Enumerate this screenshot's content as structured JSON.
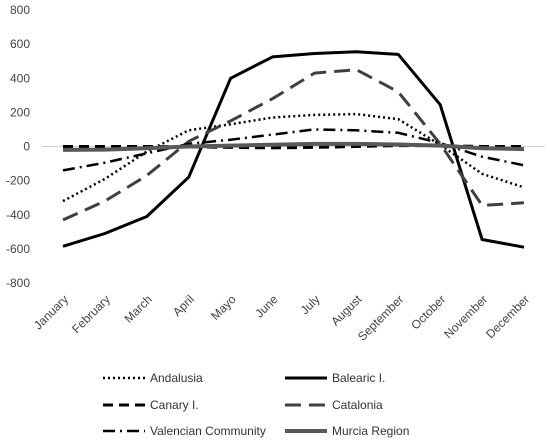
{
  "chart_data": {
    "type": "line",
    "title": "",
    "xlabel": "",
    "ylabel": "",
    "categories": [
      "January",
      "February",
      "March",
      "April",
      "Mayo",
      "June",
      "July",
      "August",
      "September",
      "October",
      "November",
      "December"
    ],
    "ylim": [
      -800,
      800
    ],
    "yticks": [
      800,
      600,
      400,
      200,
      0,
      -200,
      -400,
      -600,
      -800
    ],
    "grid": false,
    "legend_position": "bottom",
    "series": [
      {
        "name": "Andalusia",
        "style": "dotted",
        "width": 2.5,
        "color": "#000000",
        "values": [
          -320,
          -190,
          -30,
          95,
          130,
          170,
          185,
          190,
          160,
          10,
          -160,
          -240
        ]
      },
      {
        "name": "Balearic I.",
        "style": "solid",
        "width": 3,
        "color": "#000000",
        "values": [
          -585,
          -510,
          -410,
          -180,
          400,
          525,
          545,
          555,
          540,
          245,
          -545,
          -590
        ]
      },
      {
        "name": "Canary I.",
        "style": "dashed",
        "width": 3,
        "color": "#000000",
        "values": [
          0,
          0,
          0,
          -2,
          -5,
          -8,
          -5,
          0,
          5,
          5,
          0,
          0
        ]
      },
      {
        "name": "Catalonia",
        "style": "longdash",
        "width": 3,
        "color": "#404040",
        "values": [
          -430,
          -320,
          -170,
          30,
          150,
          280,
          430,
          450,
          320,
          15,
          -345,
          -330
        ]
      },
      {
        "name": "Valencian Community",
        "style": "dashdot",
        "width": 2.5,
        "color": "#000000",
        "values": [
          -140,
          -95,
          -40,
          15,
          40,
          70,
          100,
          95,
          80,
          20,
          -60,
          -110
        ]
      },
      {
        "name": "Murcia Region",
        "style": "solid",
        "width": 4,
        "color": "#595959",
        "values": [
          -20,
          -18,
          -10,
          0,
          5,
          10,
          15,
          15,
          12,
          5,
          -10,
          -15
        ]
      }
    ]
  }
}
